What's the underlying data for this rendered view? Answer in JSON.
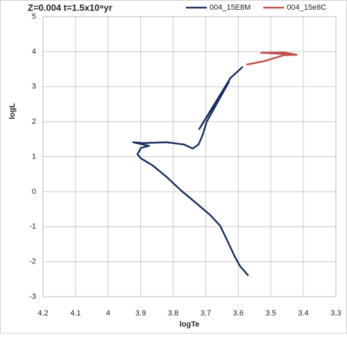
{
  "chart_data": {
    "type": "line",
    "title": "Z=0.004 t=1.5x10⁹yr",
    "x_label": "logTe",
    "y_label": "logL",
    "xlim": [
      4.2,
      3.3
    ],
    "xticks": [
      4.2,
      4.1,
      4,
      3.9,
      3.8,
      3.7,
      3.6,
      3.5,
      3.4,
      3.3
    ],
    "ylim": [
      -3,
      5
    ],
    "yticks": [
      -3,
      -2,
      -1,
      0,
      1,
      2,
      3,
      4,
      5
    ],
    "grid": true,
    "legend": "top",
    "series": [
      {
        "name": "004_15E8M",
        "color": "#1b2f5e",
        "x": [
          3.569,
          3.595,
          3.612,
          3.635,
          3.656,
          3.686,
          3.735,
          3.774,
          3.82,
          3.863,
          3.899,
          3.91,
          3.899,
          3.874,
          3.893,
          3.923,
          3.895,
          3.82,
          3.767,
          3.74,
          3.722,
          3.71,
          3.697,
          3.667,
          3.629,
          3.72,
          3.624,
          3.586
        ],
        "values": [
          -2.4,
          -2.12,
          -1.83,
          -1.37,
          -0.97,
          -0.67,
          -0.28,
          0.02,
          0.42,
          0.75,
          0.95,
          1.07,
          1.25,
          1.31,
          1.35,
          1.41,
          1.39,
          1.41,
          1.35,
          1.23,
          1.35,
          1.61,
          2.0,
          2.5,
          3.13,
          1.79,
          3.25,
          3.57
        ]
      },
      {
        "name": "004_15e8C",
        "color": "#c0504d",
        "x": [
          3.575,
          3.52,
          3.46,
          3.42,
          3.53,
          3.46,
          3.42
        ],
        "values": [
          3.63,
          3.73,
          3.9,
          3.91,
          3.97,
          3.98,
          3.91
        ]
      }
    ]
  }
}
